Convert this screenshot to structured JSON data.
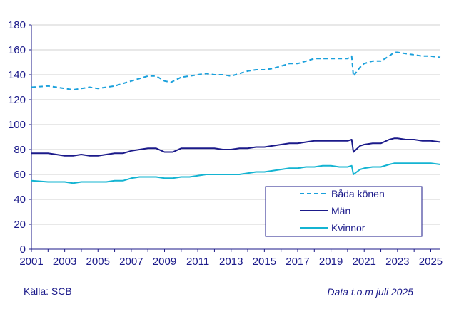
{
  "chart_data": {
    "type": "line",
    "title": "",
    "xlabel": "",
    "ylabel": "",
    "xlim": [
      2001,
      2025.58
    ],
    "ylim": [
      0,
      180
    ],
    "yticks": [
      0,
      20,
      40,
      60,
      80,
      100,
      120,
      140,
      160,
      180
    ],
    "xticks": [
      2001,
      2003,
      2005,
      2007,
      2009,
      2011,
      2013,
      2015,
      2017,
      2019,
      2021,
      2023,
      2025
    ],
    "grid": "horizontal",
    "legend_position": "bottom-right",
    "series": [
      {
        "name": "Båda könen",
        "color": "#1aa0dc",
        "style": "dashed",
        "points": [
          [
            2001.0,
            130
          ],
          [
            2002.0,
            131
          ],
          [
            2002.5,
            130
          ],
          [
            2003.0,
            129
          ],
          [
            2003.5,
            128
          ],
          [
            2004.0,
            129
          ],
          [
            2004.5,
            130
          ],
          [
            2005.0,
            129
          ],
          [
            2005.5,
            130
          ],
          [
            2006.0,
            131
          ],
          [
            2006.5,
            133
          ],
          [
            2007.0,
            135
          ],
          [
            2007.5,
            137
          ],
          [
            2008.0,
            139
          ],
          [
            2008.5,
            139
          ],
          [
            2009.0,
            135
          ],
          [
            2009.4,
            134
          ],
          [
            2010.0,
            138
          ],
          [
            2010.5,
            139
          ],
          [
            2011.0,
            140
          ],
          [
            2011.5,
            141
          ],
          [
            2012.0,
            140
          ],
          [
            2012.5,
            140
          ],
          [
            2013.0,
            139
          ],
          [
            2013.5,
            141
          ],
          [
            2014.0,
            143
          ],
          [
            2014.5,
            144
          ],
          [
            2015.0,
            144
          ],
          [
            2015.5,
            145
          ],
          [
            2016.0,
            147
          ],
          [
            2016.5,
            149
          ],
          [
            2017.0,
            149
          ],
          [
            2017.5,
            151
          ],
          [
            2018.0,
            153
          ],
          [
            2018.5,
            153
          ],
          [
            2019.0,
            153
          ],
          [
            2019.5,
            153
          ],
          [
            2020.0,
            153
          ],
          [
            2020.25,
            155
          ],
          [
            2020.35,
            139
          ],
          [
            2020.75,
            146
          ],
          [
            2021.0,
            149
          ],
          [
            2021.5,
            151
          ],
          [
            2022.0,
            151
          ],
          [
            2022.5,
            155
          ],
          [
            2022.8,
            158
          ],
          [
            2023.0,
            158
          ],
          [
            2023.5,
            157
          ],
          [
            2024.0,
            156
          ],
          [
            2024.5,
            155
          ],
          [
            2025.0,
            155
          ],
          [
            2025.58,
            154
          ]
        ]
      },
      {
        "name": "Män",
        "color": "#1b1a8a",
        "style": "solid",
        "points": [
          [
            2001.0,
            77
          ],
          [
            2002.0,
            77
          ],
          [
            2002.5,
            76
          ],
          [
            2003.0,
            75
          ],
          [
            2003.5,
            75
          ],
          [
            2004.0,
            76
          ],
          [
            2004.5,
            75
          ],
          [
            2005.0,
            75
          ],
          [
            2005.5,
            76
          ],
          [
            2006.0,
            77
          ],
          [
            2006.5,
            77
          ],
          [
            2007.0,
            79
          ],
          [
            2007.5,
            80
          ],
          [
            2008.0,
            81
          ],
          [
            2008.5,
            81
          ],
          [
            2009.0,
            78
          ],
          [
            2009.5,
            78
          ],
          [
            2010.0,
            81
          ],
          [
            2010.5,
            81
          ],
          [
            2011.0,
            81
          ],
          [
            2011.5,
            81
          ],
          [
            2012.0,
            81
          ],
          [
            2012.5,
            80
          ],
          [
            2013.0,
            80
          ],
          [
            2013.5,
            81
          ],
          [
            2014.0,
            81
          ],
          [
            2014.5,
            82
          ],
          [
            2015.0,
            82
          ],
          [
            2015.5,
            83
          ],
          [
            2016.0,
            84
          ],
          [
            2016.5,
            85
          ],
          [
            2017.0,
            85
          ],
          [
            2017.5,
            86
          ],
          [
            2018.0,
            87
          ],
          [
            2018.5,
            87
          ],
          [
            2019.0,
            87
          ],
          [
            2019.5,
            87
          ],
          [
            2020.0,
            87
          ],
          [
            2020.25,
            88
          ],
          [
            2020.35,
            78
          ],
          [
            2020.75,
            83
          ],
          [
            2021.0,
            84
          ],
          [
            2021.5,
            85
          ],
          [
            2022.0,
            85
          ],
          [
            2022.5,
            88
          ],
          [
            2022.8,
            89
          ],
          [
            2023.0,
            89
          ],
          [
            2023.5,
            88
          ],
          [
            2024.0,
            88
          ],
          [
            2024.5,
            87
          ],
          [
            2025.0,
            87
          ],
          [
            2025.58,
            86
          ]
        ]
      },
      {
        "name": "Kvinnor",
        "color": "#14b4d2",
        "style": "solid",
        "points": [
          [
            2001.0,
            55
          ],
          [
            2002.0,
            54
          ],
          [
            2002.5,
            54
          ],
          [
            2003.0,
            54
          ],
          [
            2003.5,
            53
          ],
          [
            2004.0,
            54
          ],
          [
            2004.5,
            54
          ],
          [
            2005.0,
            54
          ],
          [
            2005.5,
            54
          ],
          [
            2006.0,
            55
          ],
          [
            2006.5,
            55
          ],
          [
            2007.0,
            57
          ],
          [
            2007.5,
            58
          ],
          [
            2008.0,
            58
          ],
          [
            2008.5,
            58
          ],
          [
            2009.0,
            57
          ],
          [
            2009.5,
            57
          ],
          [
            2010.0,
            58
          ],
          [
            2010.5,
            58
          ],
          [
            2011.0,
            59
          ],
          [
            2011.5,
            60
          ],
          [
            2012.0,
            60
          ],
          [
            2012.5,
            60
          ],
          [
            2013.0,
            60
          ],
          [
            2013.5,
            60
          ],
          [
            2014.0,
            61
          ],
          [
            2014.5,
            62
          ],
          [
            2015.0,
            62
          ],
          [
            2015.5,
            63
          ],
          [
            2016.0,
            64
          ],
          [
            2016.5,
            65
          ],
          [
            2017.0,
            65
          ],
          [
            2017.5,
            66
          ],
          [
            2018.0,
            66
          ],
          [
            2018.5,
            67
          ],
          [
            2019.0,
            67
          ],
          [
            2019.5,
            66
          ],
          [
            2020.0,
            66
          ],
          [
            2020.25,
            67
          ],
          [
            2020.35,
            60
          ],
          [
            2020.75,
            64
          ],
          [
            2021.0,
            65
          ],
          [
            2021.5,
            66
          ],
          [
            2022.0,
            66
          ],
          [
            2022.5,
            68
          ],
          [
            2022.8,
            69
          ],
          [
            2023.0,
            69
          ],
          [
            2023.5,
            69
          ],
          [
            2024.0,
            69
          ],
          [
            2024.5,
            69
          ],
          [
            2025.0,
            69
          ],
          [
            2025.58,
            68
          ]
        ]
      }
    ]
  },
  "footer": {
    "source": "Källa: SCB",
    "data_note": "Data t.o.m juli 2025"
  }
}
